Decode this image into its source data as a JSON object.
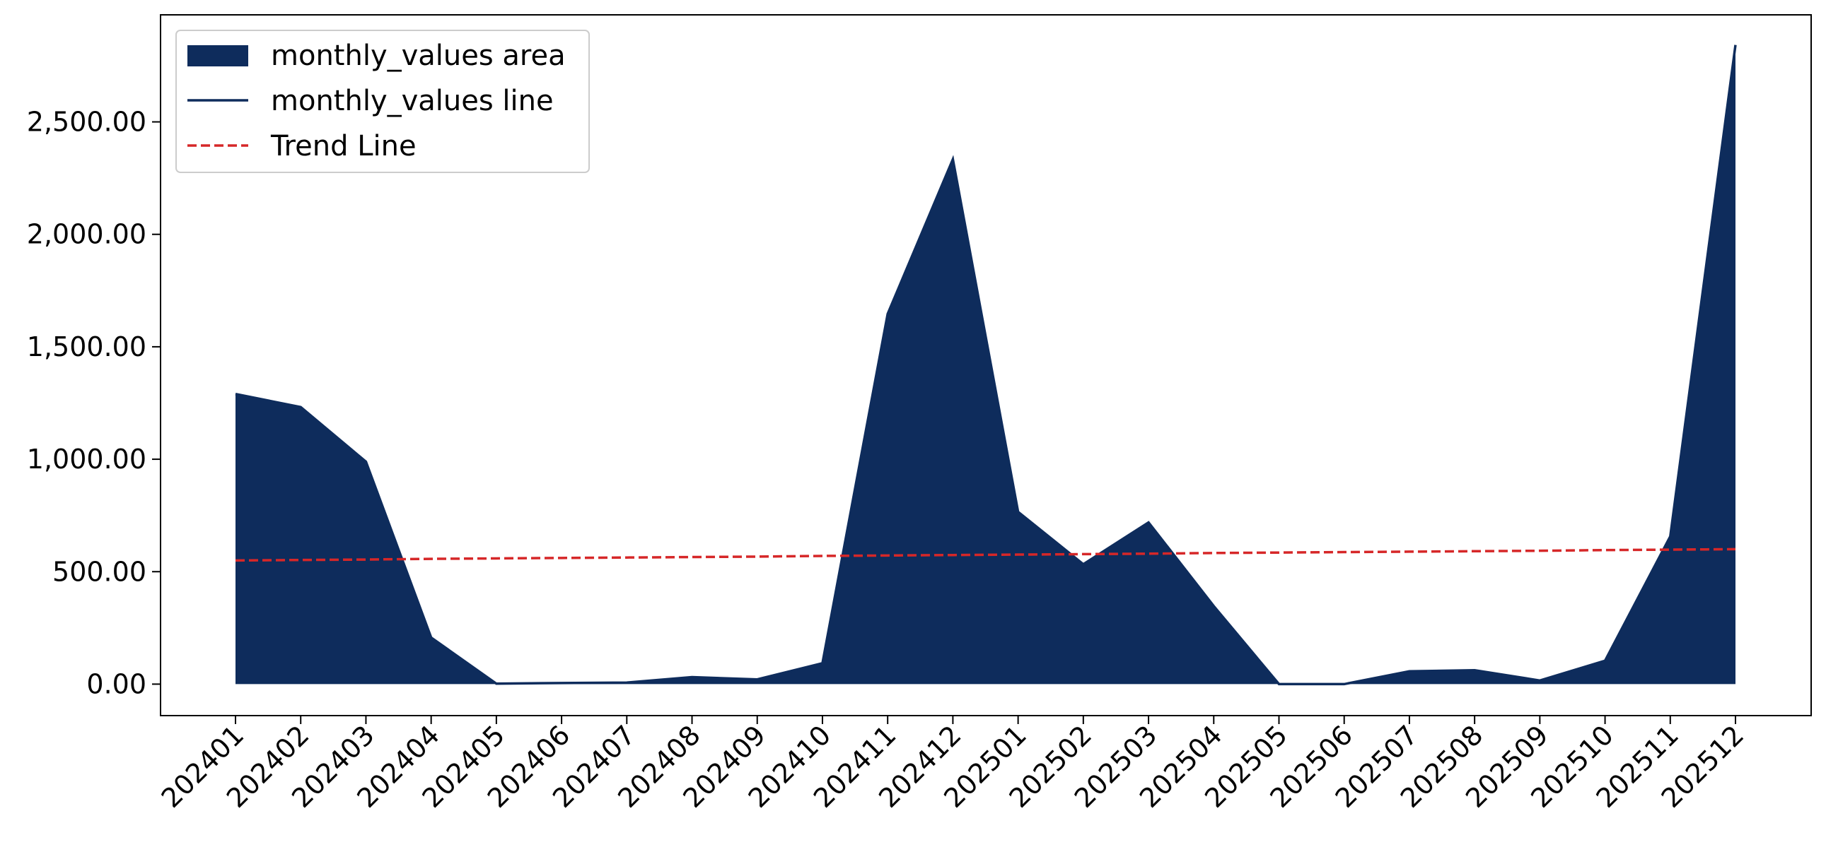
{
  "chart_data": {
    "type": "area",
    "categories": [
      "202401",
      "202402",
      "202403",
      "202404",
      "202405",
      "202406",
      "202407",
      "202408",
      "202409",
      "202410",
      "202411",
      "202412",
      "202501",
      "202502",
      "202503",
      "202504",
      "202505",
      "202506",
      "202507",
      "202508",
      "202509",
      "202510",
      "202511",
      "202512"
    ],
    "series": [
      {
        "name": "monthly_values area",
        "color": "#0e2c5c",
        "style": "area",
        "values": [
          1290,
          1232,
          989,
          207,
          2,
          5,
          7,
          31,
          21,
          93,
          1646,
          2334,
          766,
          533,
          719,
          347,
          0,
          0,
          57,
          62,
          16,
          104,
          657,
          2842
        ]
      },
      {
        "name": "monthly_values line",
        "color": "#0e2c5c",
        "style": "solid",
        "values": [
          1290,
          1232,
          989,
          207,
          2,
          5,
          7,
          31,
          21,
          93,
          1646,
          2334,
          766,
          533,
          719,
          347,
          0,
          0,
          57,
          62,
          16,
          104,
          657,
          2842
        ]
      },
      {
        "name": "Trend Line",
        "color": "#d62728",
        "style": "dashed",
        "values": [
          550,
          552,
          554,
          557,
          559,
          561,
          563,
          565,
          567,
          570,
          572,
          574,
          576,
          578,
          580,
          583,
          585,
          587,
          589,
          591,
          593,
          596,
          598,
          600
        ]
      }
    ],
    "ylim": [
      -140,
      2976
    ],
    "yticks": [
      {
        "value": 0,
        "label": "0.00"
      },
      {
        "value": 500,
        "label": "500.00"
      },
      {
        "value": 1000,
        "label": "1,000.00"
      },
      {
        "value": 1500,
        "label": "1,500.00"
      },
      {
        "value": 2000,
        "label": "2,000.00"
      },
      {
        "value": 2500,
        "label": "2,500.00"
      }
    ],
    "legend": "upper left",
    "grid": false
  }
}
